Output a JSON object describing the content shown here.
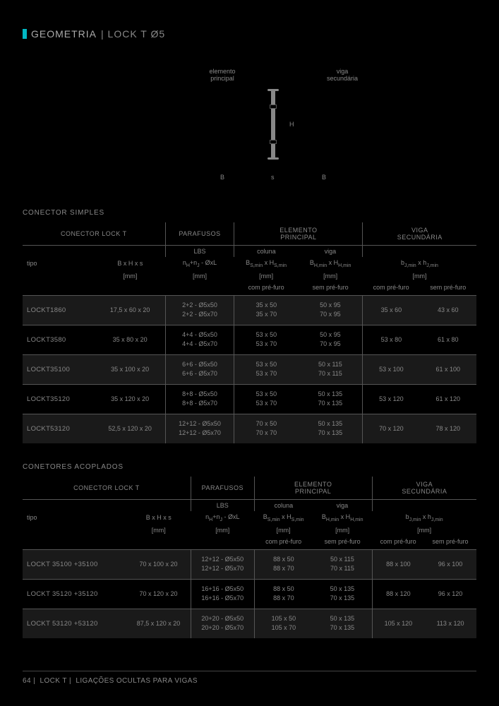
{
  "header": {
    "t1": "GEOMETRIA",
    "t2": "| LOCK T Ø5"
  },
  "diagram": {
    "elprin": "elemento\nprincipal",
    "viga": "viga\nsecundária",
    "H": "H",
    "B": "B",
    "s": "s"
  },
  "s1": {
    "title": "CONECTOR SIMPLES",
    "g": [
      "CONECTOR LOCK T",
      "PARAFUSOS",
      "ELEMENTO\nPRINCIPAL",
      "VIGA\nSECUNDÁRIA"
    ],
    "sub": {
      "lbs": "LBS",
      "col": "coluna",
      "vig": "viga"
    },
    "sub2": {
      "tipo": "tipo",
      "bhs": "B x H x s",
      "nh": "n",
      "bshs": "B",
      "bhhh": "B",
      "bjhj": "b"
    },
    "unit": {
      "mm": "[mm]"
    },
    "note": {
      "cpf": "com pré-furo",
      "spf": "sem pré-furo"
    },
    "rows": [
      {
        "t": "LOCKT1860",
        "b": "17,5 x 60 x 20",
        "p": "2+2 - Ø5x50\n2+2 - Ø5x70",
        "c": "35 x 50\n35 x 70",
        "v": "50 x 95\n70 x 95",
        "j1": "35 x 60",
        "j2": "43 x 60"
      },
      {
        "t": "LOCKT3580",
        "b": "35 x 80 x 20",
        "p": "4+4 - Ø5x50\n4+4 - Ø5x70",
        "c": "53 x 50\n53 x 70",
        "v": "50 x 95\n70 x 95",
        "j1": "53 x 80",
        "j2": "61 x 80"
      },
      {
        "t": "LOCKT35100",
        "b": "35 x 100 x 20",
        "p": "6+6 - Ø5x50\n6+6 - Ø5x70",
        "c": "53 x 50\n53 x 70",
        "v": "50 x 115\n70 x 115",
        "j1": "53 x 100",
        "j2": "61 x 100"
      },
      {
        "t": "LOCKT35120",
        "b": "35 x 120 x 20",
        "p": "8+8 - Ø5x50\n8+8 - Ø5x70",
        "c": "53 x 50\n53 x 70",
        "v": "50 x 135\n70 x 135",
        "j1": "53 x 120",
        "j2": "61 x 120"
      },
      {
        "t": "LOCKT53120",
        "b": "52,5 x 120 x 20",
        "p": "12+12 - Ø5x50\n12+12 - Ø5x70",
        "c": "70 x 50\n70 x 70",
        "v": "50 x 135\n70 x 135",
        "j1": "70 x 120",
        "j2": "78 x 120"
      }
    ]
  },
  "s2": {
    "title": "CONETORES ACOPLADOS",
    "rows": [
      {
        "t": "LOCKT 35100 +35100",
        "b": "70 x 100 x 20",
        "p": "12+12 - Ø5x50\n12+12 - Ø5x70",
        "c": "88 x 50\n88 x 70",
        "v": "50 x 115\n70 x 115",
        "j1": "88 x 100",
        "j2": "96 x 100"
      },
      {
        "t": "LOCKT 35120 +35120",
        "b": "70 x 120 x 20",
        "p": "16+16 - Ø5x50\n16+16 - Ø5x70",
        "c": "88 x 50\n88 x 70",
        "v": "50 x 135\n70 x 135",
        "j1": "88 x 120",
        "j2": "96 x 120"
      },
      {
        "t": "LOCKT 53120 +53120",
        "b": "87,5 x 120 x 20",
        "p": "20+20 - Ø5x50\n20+20 - Ø5x70",
        "c": "105 x 50\n105 x 70",
        "v": "50 x 135\n70 x 135",
        "j1": "105 x 120",
        "j2": "113 x 120"
      }
    ]
  },
  "footer": {
    "pg": "64",
    "a": "LOCK T",
    "b": "LIGAÇÕES OCULTAS PARA VIGAS"
  }
}
